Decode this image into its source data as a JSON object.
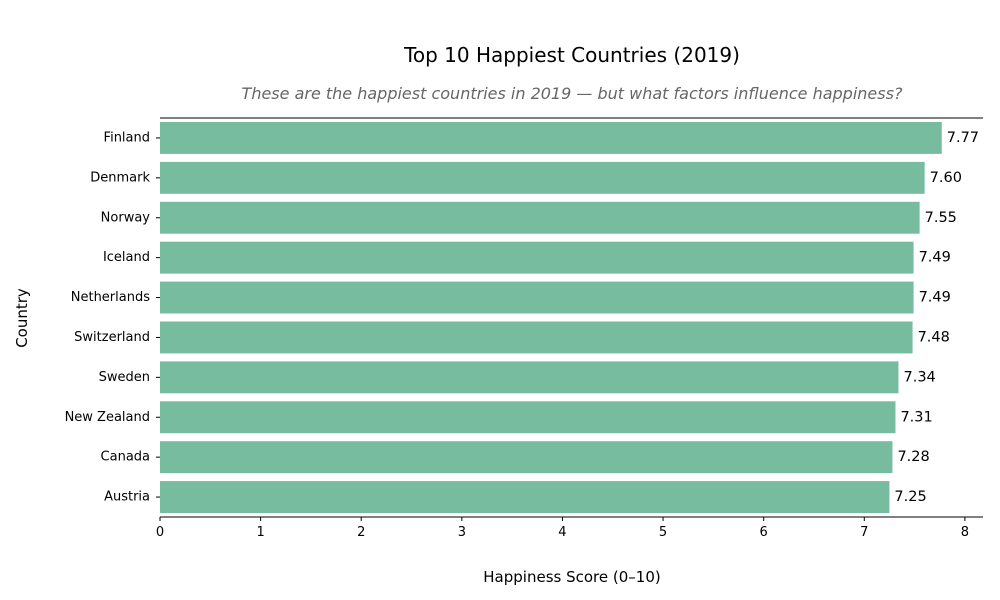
{
  "chart_data": {
    "type": "bar",
    "orientation": "horizontal",
    "title": "Top 10 Happiest Countries (2019)",
    "subtitle": "These are the happiest countries in 2019 — but what factors influence happiness?",
    "xlabel": "Happiness Score (0–10)",
    "ylabel": "Country",
    "categories": [
      "Finland",
      "Denmark",
      "Norway",
      "Iceland",
      "Netherlands",
      "Switzerland",
      "Sweden",
      "New Zealand",
      "Canada",
      "Austria"
    ],
    "values": [
      7.77,
      7.6,
      7.55,
      7.49,
      7.49,
      7.48,
      7.34,
      7.31,
      7.28,
      7.25
    ],
    "value_labels": [
      "7.77",
      "7.60",
      "7.55",
      "7.49",
      "7.49",
      "7.48",
      "7.34",
      "7.31",
      "7.28",
      "7.25"
    ],
    "xlim": [
      0,
      8.18
    ],
    "xticks": [
      0,
      1,
      2,
      3,
      4,
      5,
      6,
      7,
      8
    ],
    "grid": false,
    "bar_color": "#78bca0"
  }
}
